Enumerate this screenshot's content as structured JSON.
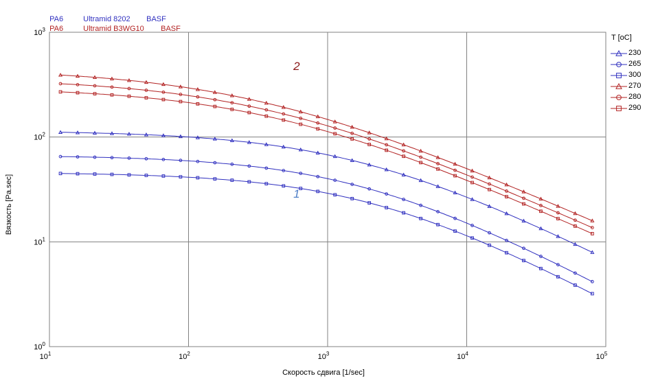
{
  "header": {
    "line1": {
      "material": "PA6",
      "grade": "Ultramid 8202",
      "maker": "BASF"
    },
    "line2": {
      "material": "PA6",
      "grade": "Ultramid B3WG10",
      "maker": "BASF"
    }
  },
  "colors": {
    "blue": "#2f2fbf",
    "red": "#b22222",
    "grid": "#808080",
    "curve_label": "#5080c8",
    "label2": "#8b1a1a"
  },
  "chart_data": {
    "type": "line",
    "xscale": "log",
    "yscale": "log",
    "xlim": [
      10,
      100000
    ],
    "ylim": [
      1,
      1000
    ],
    "xlabel": "Скорость сдвига [1/sec]",
    "ylabel": "Вязкость [Pa.sec]",
    "x_ticks": [
      {
        "base": "10",
        "exp": "1"
      },
      {
        "base": "10",
        "exp": "2"
      },
      {
        "base": "10",
        "exp": "3"
      },
      {
        "base": "10",
        "exp": "4"
      },
      {
        "base": "10",
        "exp": "5"
      }
    ],
    "y_ticks": [
      {
        "base": "10",
        "exp": "0"
      },
      {
        "base": "10",
        "exp": "1"
      },
      {
        "base": "10",
        "exp": "2"
      },
      {
        "base": "10",
        "exp": "3"
      }
    ],
    "grid": true,
    "legend_title": "T [oC]",
    "legend_position": "right",
    "annotations": [
      {
        "text": "2",
        "x": 300,
        "y": 410
      },
      {
        "text": "1",
        "x": 300,
        "y": 28
      }
    ],
    "series": [
      {
        "name": "230",
        "marker": "triangle",
        "color": "#2f2fbf",
        "eta0": 115,
        "tau": 0.00059,
        "n": 0.325
      },
      {
        "name": "265",
        "marker": "circle",
        "color": "#2f2fbf",
        "eta0": 67,
        "tau": 0.00057,
        "n": 0.29
      },
      {
        "name": "300",
        "marker": "square",
        "color": "#2f2fbf",
        "eta0": 46,
        "tau": 0.00047,
        "n": 0.285
      },
      {
        "name": "270",
        "marker": "triangle",
        "color": "#b22222",
        "eta0": 450,
        "tau": 0.0034,
        "n": 0.41
      },
      {
        "name": "280",
        "marker": "circle",
        "color": "#b22222",
        "eta0": 365,
        "tau": 0.0028,
        "n": 0.4
      },
      {
        "name": "290",
        "marker": "square",
        "color": "#b22222",
        "eta0": 300,
        "tau": 0.0023,
        "n": 0.39
      }
    ]
  }
}
